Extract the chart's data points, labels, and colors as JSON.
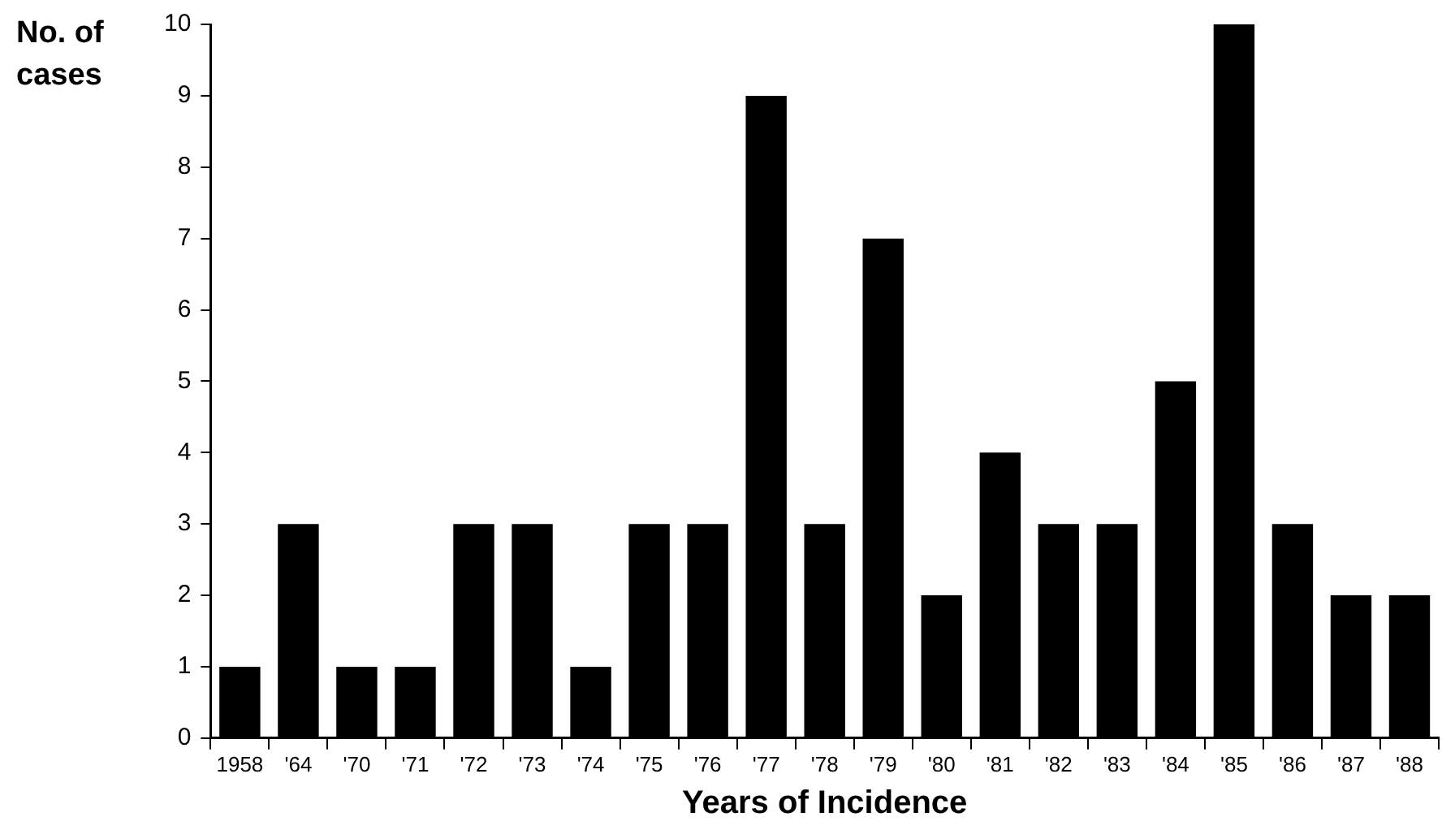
{
  "chart_data": {
    "type": "bar",
    "xlabel": "Years of Incidence",
    "ylabel": "No. of cases",
    "categories": [
      "1958",
      "'64",
      "'70",
      "'71",
      "'72",
      "'73",
      "'74",
      "'75",
      "'76",
      "'77",
      "'78",
      "'79",
      "'80",
      "'81",
      "'82",
      "'83",
      "'84",
      "'85",
      "'86",
      "'87",
      "'88"
    ],
    "values": [
      1,
      3,
      1,
      1,
      3,
      3,
      1,
      3,
      3,
      9,
      3,
      7,
      2,
      4,
      3,
      3,
      5,
      10,
      3,
      2,
      2
    ],
    "color": "#000000",
    "ylim": [
      0,
      10
    ],
    "yticks": [
      0,
      1,
      2,
      3,
      4,
      5,
      6,
      7,
      8,
      9,
      10
    ]
  }
}
